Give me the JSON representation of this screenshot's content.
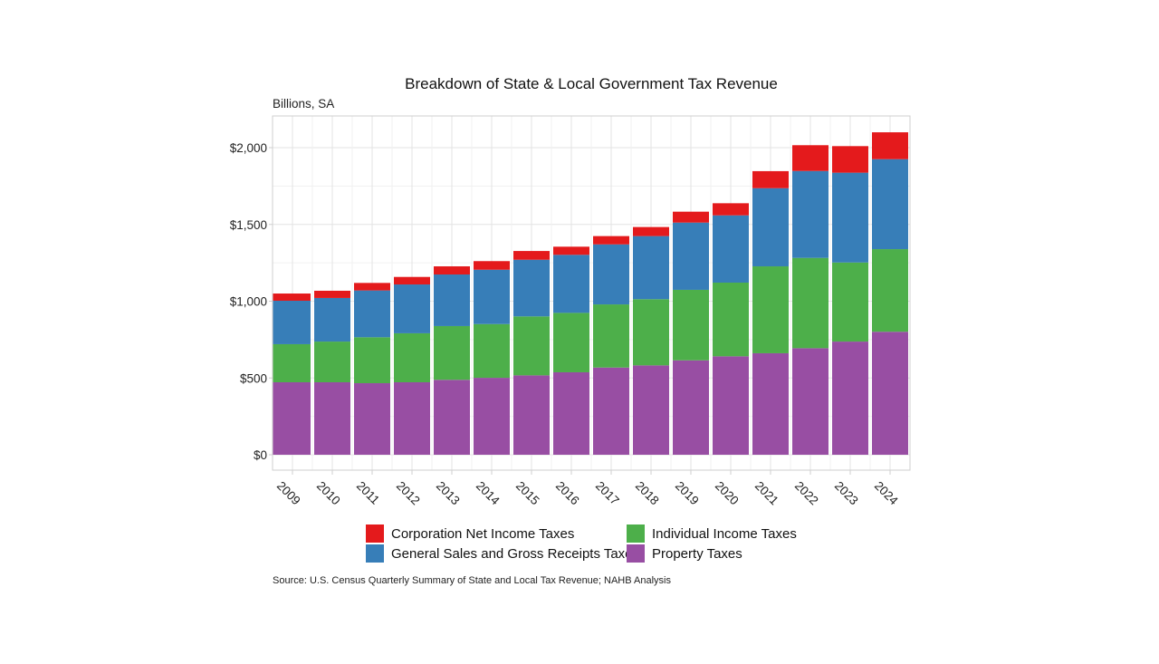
{
  "chart_data": {
    "type": "bar",
    "stacked": true,
    "title": "Breakdown of State & Local Government Tax Revenue",
    "subtitle": "Billions, SA",
    "xlabel": "",
    "ylabel": "",
    "ylim": [
      0,
      2200
    ],
    "yticks": [
      0,
      500,
      1000,
      1500,
      2000
    ],
    "ytick_labels": [
      "$0",
      "$500",
      "$1,000",
      "$1,500",
      "$2,000"
    ],
    "grid": true,
    "legend_position": "bottom",
    "categories": [
      "2009",
      "2010",
      "2011",
      "2012",
      "2013",
      "2014",
      "2015",
      "2016",
      "2017",
      "2018",
      "2019",
      "2020",
      "2021",
      "2022",
      "2023",
      "2024"
    ],
    "series": [
      {
        "name": "Property Taxes",
        "color": "#984EA3",
        "values": [
          472,
          472,
          466,
          472,
          488,
          501,
          517,
          537,
          568,
          582,
          615,
          641,
          661,
          694,
          737,
          801
        ]
      },
      {
        "name": "Individual Income Taxes",
        "color": "#4DAF4A",
        "values": [
          248,
          265,
          299,
          319,
          350,
          350,
          384,
          387,
          411,
          431,
          459,
          480,
          566,
          588,
          515,
          538
        ]
      },
      {
        "name": "General Sales and Gross Receipts Taxes",
        "color": "#377EB8",
        "values": [
          283,
          284,
          305,
          318,
          336,
          354,
          369,
          378,
          391,
          411,
          438,
          438,
          509,
          566,
          585,
          586
        ]
      },
      {
        "name": "Corporation Net Income Taxes",
        "color": "#E41A1C",
        "values": [
          47,
          47,
          49,
          49,
          53,
          56,
          57,
          53,
          54,
          59,
          71,
          79,
          111,
          168,
          173,
          175
        ]
      }
    ],
    "legend": [
      {
        "name": "Corporation Net Income Taxes",
        "color": "#E41A1C"
      },
      {
        "name": "Individual Income Taxes",
        "color": "#4DAF4A"
      },
      {
        "name": "General Sales and Gross Receipts Taxes",
        "color": "#377EB8"
      },
      {
        "name": "Property Taxes",
        "color": "#984EA3"
      }
    ],
    "source": "Source: U.S. Census Quarterly Summary of State and Local Tax Revenue; NAHB Analysis"
  }
}
